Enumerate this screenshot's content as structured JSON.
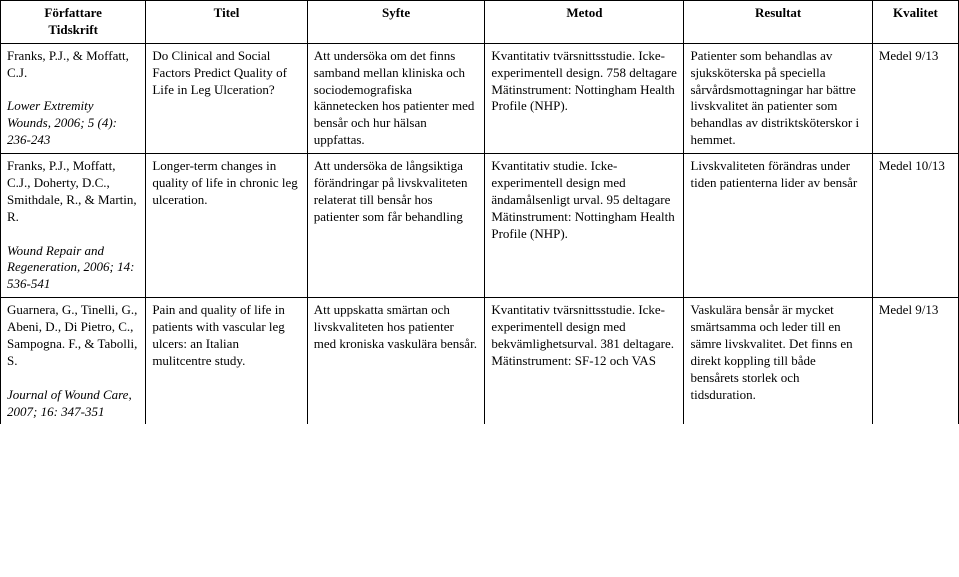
{
  "headers": {
    "author": "Författare\nTidskrift",
    "title": "Titel",
    "purpose": "Syfte",
    "method": "Metod",
    "result": "Resultat",
    "quality": "Kvalitet"
  },
  "rows": [
    {
      "author_main": "Franks, P.J., & Moffatt, C.J.",
      "author_journal": "Lower Extremity Wounds, 2006; 5 (4): 236-243",
      "title": "Do Clinical and Social Factors Predict Quality of Life in Leg Ulceration?",
      "purpose": "Att undersöka om det finns samband mellan kliniska och sociodemografiska kännetecken hos patienter med bensår och hur hälsan uppfattas.",
      "method": "Kvantitativ tvärsnittsstudie. Icke-experimentell design. 758 deltagare Mätinstrument: Nottingham Health Profile (NHP).",
      "result": "Patienter som behandlas av sjuksköterska på speciella sårvårdsmottagningar har bättre livskvalitet än patienter som behandlas av distriktsköterskor i hemmet.",
      "quality": "Medel 9/13"
    },
    {
      "author_main": "Franks, P.J., Moffatt, C.J., Doherty, D.C., Smithdale, R., & Martin, R.",
      "author_journal": "Wound Repair and Regeneration, 2006; 14: 536-541",
      "title": "Longer-term changes in quality of life in chronic leg ulceration.",
      "purpose": "Att undersöka de långsiktiga förändringar på livskvaliteten relaterat till bensår hos patienter som får behandling",
      "method": "Kvantitativ studie. Icke-experimentell design med ändamålsenligt urval. 95 deltagare Mätinstrument: Nottingham Health Profile (NHP).",
      "result": "Livskvaliteten förändras under tiden patienterna lider av bensår",
      "quality": "Medel 10/13"
    },
    {
      "author_main": "Guarnera, G., Tinelli, G., Abeni, D., Di Pietro, C., Sampogna. F., & Tabolli, S.",
      "author_journal": "Journal of Wound Care, 2007; 16: 347-351",
      "title": "Pain and quality of life in patients with vascular leg ulcers: an Italian mulitcentre study.",
      "purpose": "Att uppskatta smärtan och livskvaliteten hos patienter med kroniska vaskulära bensår.",
      "method": "Kvantitativ tvärsnittsstudie. Icke-experimentell design med bekvämlighetsurval. 381 deltagare. Mätinstrument: SF-12 och VAS",
      "result": "Vaskulära bensår är mycket smärtsamma och leder till en sämre livskvalitet. Det finns en direkt koppling till både bensårets storlek och tidsduration.",
      "quality": "Medel 9/13"
    }
  ]
}
